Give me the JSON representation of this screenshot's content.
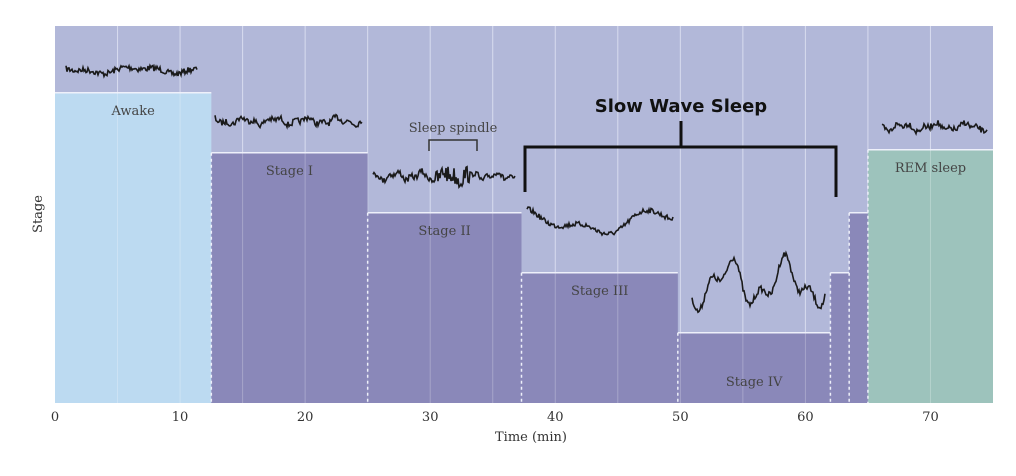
{
  "chart_data": {
    "type": "step-area",
    "xlabel": "Time (min)",
    "ylabel": "Stage",
    "xlim": [
      0,
      75
    ],
    "x_ticks": [
      "0",
      "10",
      "20",
      "30",
      "40",
      "50",
      "60",
      "70"
    ],
    "grid": "vertical every 5 min",
    "stage_levels": {
      "Stage IV": 1,
      "Stage III": 2,
      "Stage II": 3,
      "Stage I": 4,
      "REM sleep": 4.05,
      "Awake": 5
    },
    "segments": [
      {
        "start": 0,
        "end": 12.5,
        "stage": "Awake",
        "label": "Awake"
      },
      {
        "start": 12.5,
        "end": 25,
        "stage": "Stage I",
        "label": "Stage I"
      },
      {
        "start": 25,
        "end": 37.3,
        "stage": "Stage II",
        "label": "Stage II"
      },
      {
        "start": 37.3,
        "end": 49.8,
        "stage": "Stage III",
        "label": "Stage III"
      },
      {
        "start": 49.8,
        "end": 62,
        "stage": "Stage IV",
        "label": "Stage IV"
      },
      {
        "start": 62,
        "end": 63.5,
        "stage": "Stage III",
        "label": ""
      },
      {
        "start": 63.5,
        "end": 65,
        "stage": "Stage II",
        "label": ""
      },
      {
        "start": 65,
        "end": 75,
        "stage": "REM sleep",
        "label": "REM sleep"
      }
    ],
    "annotations": {
      "sleep_spindle": "Sleep spindle",
      "slow_wave_sleep": "Slow Wave Sleep"
    },
    "colors": {
      "background": "#b2b8d9",
      "sleep": "#8a88b9",
      "awake": "#bcdaf1",
      "rem": "#9dc3bc",
      "grid": "#d8dcef",
      "trace": "#1a1a1a"
    }
  }
}
